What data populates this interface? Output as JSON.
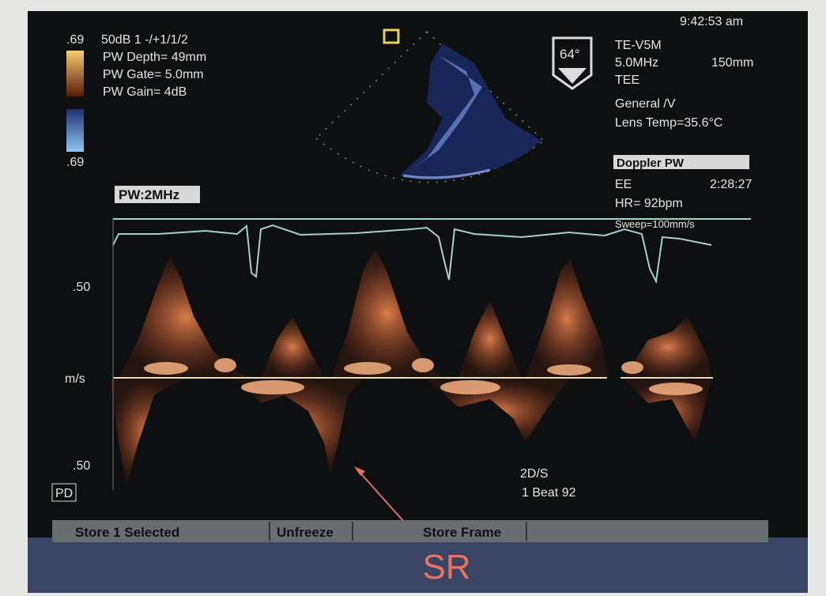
{
  "header": {
    "clock": "9:42:53 am"
  },
  "left_panel": {
    "scale_top": ".69",
    "settings": [
      "50dB 1 -/+1/1/2",
      "PW Depth= 49mm",
      "PW Gate= 5.0mm",
      "PW Gain= 4dB"
    ],
    "scale_bottom": ".69"
  },
  "right_panel": {
    "angle": "64°",
    "probe": "TE-V5M",
    "frequency": "5.0MHz",
    "depth": "150mm",
    "mode": "TEE",
    "preset": "General /V",
    "lens_temp": "Lens Temp=35.6°C",
    "box_title": "Doppler PW",
    "box_label": "EE",
    "time": "2:28:27",
    "hr": "HR= 92bpm",
    "sweep": "Sweep=100mm/s"
  },
  "doppler": {
    "label": "PW:2MHz",
    "scale_top": ".50",
    "unit": "m/s",
    "scale_bottom": ".50",
    "mode": "2D/S",
    "beat": "1 Beat 92",
    "icon": "PD"
  },
  "softkeys": [
    "Store 1 Selected",
    "Unfreeze",
    "Store Frame"
  ],
  "caption": "SR"
}
